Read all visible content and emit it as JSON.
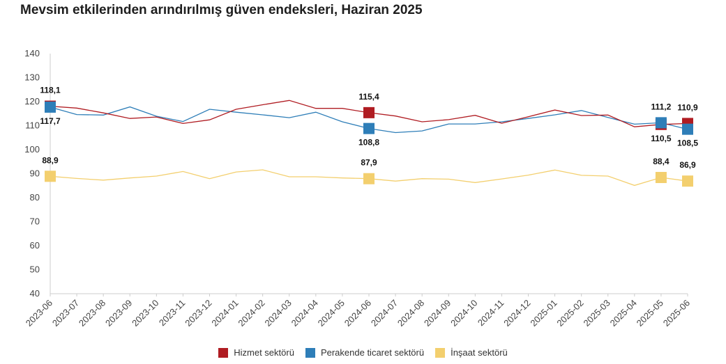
{
  "title": "Mevsim etkilerinden arındırılmış güven endeksleri, Haziran 2025",
  "chart_data": {
    "type": "line",
    "title": "Mevsim etkilerinden arındırılmış güven endeksleri, Haziran 2025",
    "xlabel": "",
    "ylabel": "",
    "ylim": [
      40,
      140
    ],
    "yticks": [
      40,
      50,
      60,
      70,
      80,
      90,
      100,
      110,
      120,
      130,
      140
    ],
    "grid": false,
    "legend_position": "bottom",
    "categories": [
      "2023-06",
      "2023-07",
      "2023-08",
      "2023-09",
      "2023-10",
      "2023-11",
      "2023-12",
      "2024-01",
      "2024-02",
      "2024-03",
      "2024-04",
      "2024-05",
      "2024-06",
      "2024-07",
      "2024-08",
      "2024-09",
      "2024-10",
      "2024-11",
      "2024-12",
      "2025-01",
      "2025-02",
      "2025-03",
      "2025-04",
      "2025-05",
      "2025-06"
    ],
    "series": [
      {
        "name": "Hizmet sektörü",
        "color": "#b01c22",
        "values": [
          118.1,
          117.3,
          115.3,
          113.0,
          113.6,
          110.9,
          112.4,
          116.8,
          118.7,
          120.5,
          117.2,
          117.2,
          115.4,
          114.0,
          111.6,
          112.5,
          114.3,
          111.0,
          113.7,
          116.5,
          114.2,
          114.4,
          109.5,
          110.5,
          110.9
        ],
        "markers": [
          {
            "index": 0,
            "label": "118,1"
          },
          {
            "index": 12,
            "label": "115,4"
          },
          {
            "index": 23,
            "label": "110,5"
          },
          {
            "index": 24,
            "label": "110,9"
          }
        ]
      },
      {
        "name": "Perakende ticaret sektörü",
        "color": "#2e7eb8",
        "values": [
          117.7,
          114.6,
          114.4,
          117.8,
          113.9,
          111.7,
          116.8,
          115.6,
          114.5,
          113.3,
          115.6,
          111.6,
          108.8,
          107.1,
          107.8,
          110.7,
          110.7,
          111.6,
          113.0,
          114.5,
          116.3,
          113.4,
          110.6,
          111.2,
          108.5
        ],
        "markers": [
          {
            "index": 0,
            "label": "117,7"
          },
          {
            "index": 12,
            "label": "108,8"
          },
          {
            "index": 23,
            "label": "111,2"
          },
          {
            "index": 24,
            "label": "108,5"
          }
        ]
      },
      {
        "name": "İnşaat sektörü",
        "color": "#f3cf6e",
        "values": [
          88.9,
          88.0,
          87.3,
          88.2,
          89.0,
          90.9,
          87.9,
          90.7,
          91.6,
          88.7,
          88.7,
          88.2,
          87.9,
          86.9,
          87.9,
          87.7,
          86.3,
          87.8,
          89.4,
          91.5,
          89.3,
          89.0,
          85.1,
          88.4,
          86.9
        ],
        "markers": [
          {
            "index": 0,
            "label": "88,9"
          },
          {
            "index": 12,
            "label": "87,9"
          },
          {
            "index": 23,
            "label": "88,4"
          },
          {
            "index": 24,
            "label": "86,9"
          }
        ]
      }
    ]
  }
}
